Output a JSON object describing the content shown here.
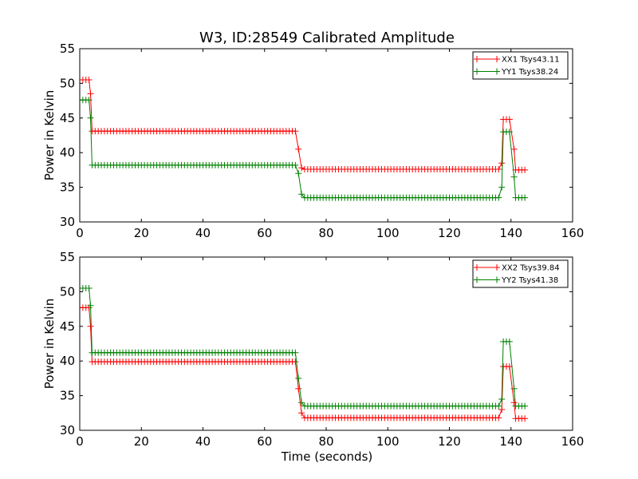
{
  "figure": {
    "title": "W3, ID:28549 Calibrated Amplitude",
    "xlabel": "Time (seconds)"
  },
  "chart_data": [
    {
      "type": "line",
      "title": "W3, ID:28549 Calibrated Amplitude",
      "xlabel": "",
      "ylabel": "Power in Kelvin",
      "xlim": [
        0,
        160
      ],
      "ylim": [
        30,
        55
      ],
      "xticks": [
        0,
        20,
        40,
        60,
        80,
        100,
        120,
        140,
        160
      ],
      "yticks": [
        30,
        35,
        40,
        45,
        50,
        55
      ],
      "grid": false,
      "legend_position": "top-right",
      "marker": "+",
      "series": [
        {
          "name": "XX1 Tsys43.11",
          "color": "#ff0000",
          "segments": [
            {
              "x_start": 0,
              "x_end": 3,
              "y": 50.5
            },
            {
              "x": 3.5,
              "y": 48.5
            },
            {
              "x_start": 4,
              "x_end": 70,
              "y": 43.1
            },
            {
              "x": 71,
              "y": 40.5
            },
            {
              "x": 72,
              "y": 37.8
            },
            {
              "x_start": 73,
              "x_end": 136,
              "y": 37.6
            },
            {
              "x": 137,
              "y": 38.5
            },
            {
              "x_start": 137.5,
              "x_end": 140,
              "y": 44.8
            },
            {
              "x": 141,
              "y": 40.5
            },
            {
              "x_start": 141.5,
              "x_end": 145,
              "y": 37.5
            }
          ]
        },
        {
          "name": "YY1 Tsys38.24",
          "color": "#008000",
          "segments": [
            {
              "x_start": 0,
              "x_end": 3,
              "y": 47.6
            },
            {
              "x": 3.5,
              "y": 45
            },
            {
              "x_start": 4,
              "x_end": 70,
              "y": 38.2
            },
            {
              "x": 71,
              "y": 37
            },
            {
              "x": 72,
              "y": 34
            },
            {
              "x_start": 73,
              "x_end": 136,
              "y": 33.5
            },
            {
              "x": 137,
              "y": 35
            },
            {
              "x_start": 137.5,
              "x_end": 140,
              "y": 43
            },
            {
              "x": 141,
              "y": 36.5
            },
            {
              "x_start": 141.5,
              "x_end": 145,
              "y": 33.5
            }
          ]
        }
      ]
    },
    {
      "type": "line",
      "title": "",
      "xlabel": "Time (seconds)",
      "ylabel": "Power in Kelvin",
      "xlim": [
        0,
        160
      ],
      "ylim": [
        30,
        55
      ],
      "xticks": [
        0,
        20,
        40,
        60,
        80,
        100,
        120,
        140,
        160
      ],
      "yticks": [
        30,
        35,
        40,
        45,
        50,
        55
      ],
      "grid": false,
      "legend_position": "top-right",
      "marker": "+",
      "series": [
        {
          "name": "XX2 Tsys39.84",
          "color": "#ff0000",
          "segments": [
            {
              "x_start": 0,
              "x_end": 3,
              "y": 47.7
            },
            {
              "x": 3.5,
              "y": 45
            },
            {
              "x_start": 4,
              "x_end": 70,
              "y": 39.9
            },
            {
              "x": 71,
              "y": 36
            },
            {
              "x": 72,
              "y": 32.5
            },
            {
              "x_start": 73,
              "x_end": 136,
              "y": 31.8
            },
            {
              "x": 137,
              "y": 33
            },
            {
              "x_start": 137.5,
              "x_end": 140,
              "y": 39.2
            },
            {
              "x": 141,
              "y": 34
            },
            {
              "x_start": 141.5,
              "x_end": 145,
              "y": 31.7
            }
          ]
        },
        {
          "name": "YY2 Tsys41.38",
          "color": "#008000",
          "segments": [
            {
              "x_start": 0,
              "x_end": 3,
              "y": 50.5
            },
            {
              "x": 3.5,
              "y": 48
            },
            {
              "x_start": 4,
              "x_end": 70,
              "y": 41.2
            },
            {
              "x": 71,
              "y": 37.5
            },
            {
              "x": 72,
              "y": 34
            },
            {
              "x_start": 73,
              "x_end": 136,
              "y": 33.5
            },
            {
              "x": 137,
              "y": 34.5
            },
            {
              "x_start": 137.5,
              "x_end": 140,
              "y": 42.8
            },
            {
              "x": 141,
              "y": 36
            },
            {
              "x_start": 141.5,
              "x_end": 145,
              "y": 33.5
            }
          ]
        }
      ]
    }
  ]
}
